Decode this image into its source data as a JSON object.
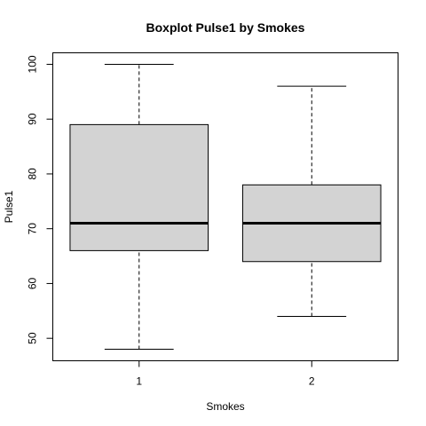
{
  "chart_data": {
    "type": "boxplot",
    "title": "Boxplot Pulse1 by Smokes",
    "xlabel": "Smokes",
    "ylabel": "Pulse1",
    "categories": [
      "1",
      "2"
    ],
    "ylim": [
      45.9,
      102.1
    ],
    "yticks": [
      50,
      60,
      70,
      80,
      90,
      100
    ],
    "grid": false,
    "legend": "none",
    "boxes": [
      {
        "category": "1",
        "min": 48,
        "q1": 66,
        "median": 71,
        "q3": 89,
        "max": 100
      },
      {
        "category": "2",
        "min": 54,
        "q1": 64,
        "median": 71,
        "q3": 78,
        "max": 96
      }
    ],
    "colors": {
      "box_fill": "#d3d3d3",
      "stroke": "#000000"
    }
  }
}
